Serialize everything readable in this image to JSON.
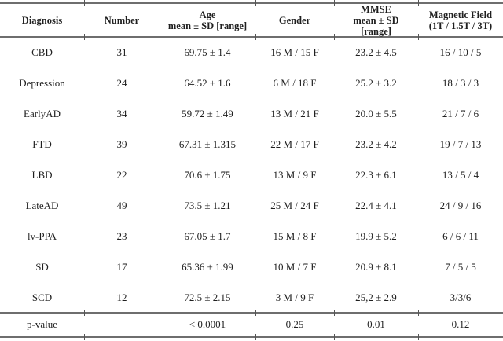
{
  "table": {
    "headers": [
      "Diagnosis",
      "Number",
      "Age\nmean ± SD [range]",
      "Gender",
      "MMSE\nmean ± SD\n[range]",
      "Magnetic Field\n(1T / 1.5T / 3T)"
    ],
    "rows": [
      {
        "cells": [
          "CBD",
          "31",
          "69.75 ± 1.4",
          "16 M / 15 F",
          "23.2 ± 4.5",
          "16 / 10 / 5"
        ]
      },
      {
        "cells": [
          "Depression",
          "24",
          "64.52 ± 1.6",
          "6 M / 18 F",
          "25.2 ± 3.2",
          "18 / 3 / 3"
        ]
      },
      {
        "cells": [
          "EarlyAD",
          "34",
          "59.72 ± 1.49",
          "13 M / 21 F",
          "20.0 ± 5.5",
          "21 / 7 / 6"
        ]
      },
      {
        "cells": [
          "FTD",
          "39",
          "67.31 ± 1.315",
          "22 M / 17 F",
          "23.2 ± 4.2",
          "19 / 7 / 13"
        ]
      },
      {
        "cells": [
          "LBD",
          "22",
          "70.6 ± 1.75",
          "13 M / 9 F",
          "22.3 ± 6.1",
          "13 / 5 / 4"
        ]
      },
      {
        "cells": [
          "LateAD",
          "49",
          "73.5 ± 1.21",
          "25 M / 24 F",
          "22.4 ± 4.1",
          "24 / 9 / 16"
        ]
      },
      {
        "cells": [
          "lv-PPA",
          "23",
          "67.05 ± 1.7",
          "15 M / 8 F",
          "19.9 ± 5.2",
          "6 / 6 / 11"
        ]
      },
      {
        "cells": [
          "SD",
          "17",
          "65.36 ± 1.99",
          "10 M / 7 F",
          "20.9 ± 8.1",
          "7 / 5 / 5"
        ]
      },
      {
        "cells": [
          "SCD",
          "12",
          "72.5 ± 2.15",
          "3 M / 9 F",
          "25,2 ± 2.9",
          "3/3/6"
        ]
      }
    ],
    "pvalue_row": {
      "cells": [
        "p-value",
        "",
        "< 0.0001",
        "0.25",
        "0.01",
        "0.12"
      ]
    }
  },
  "colors": {
    "background": "#ffffff",
    "text": "#1f1f1f",
    "rule": "#6e6e6e",
    "tick": "#555555"
  }
}
